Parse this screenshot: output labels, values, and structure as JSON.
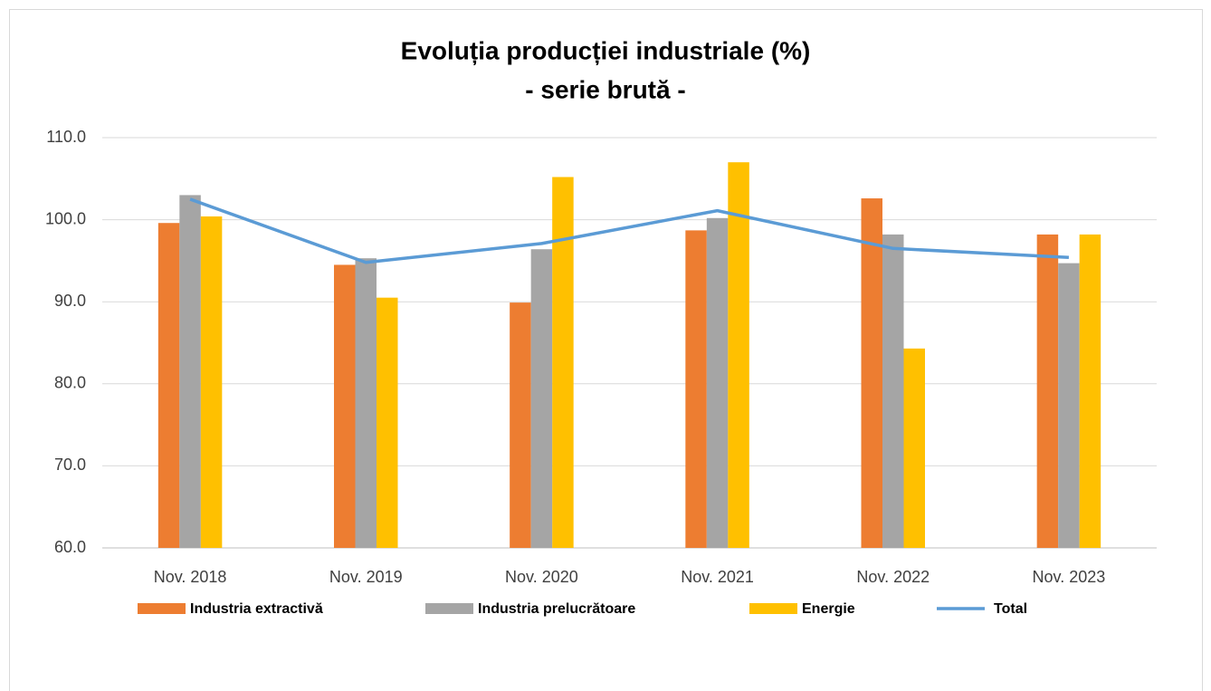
{
  "chart_data": {
    "type": "bar",
    "title": "Evoluția producției industriale (%)",
    "subtitle": "- serie brută -",
    "categories": [
      "Nov. 2018",
      "Nov. 2019",
      "Nov. 2020",
      "Nov. 2021",
      "Nov. 2022",
      "Nov. 2023"
    ],
    "series": [
      {
        "name": "Industria extractivă",
        "type": "bar",
        "color": "#ed7d31",
        "values": [
          99.6,
          94.5,
          89.9,
          98.7,
          102.6,
          98.2
        ]
      },
      {
        "name": "Industria prelucrătoare",
        "type": "bar",
        "color": "#a5a5a5",
        "values": [
          103.0,
          95.3,
          96.4,
          100.2,
          98.2,
          94.7
        ]
      },
      {
        "name": "Energie",
        "type": "bar",
        "color": "#ffc000",
        "values": [
          100.4,
          90.5,
          105.2,
          107.0,
          84.3,
          98.2
        ]
      },
      {
        "name": "Total",
        "type": "line",
        "color": "#5b9bd5",
        "values": [
          102.5,
          94.8,
          97.1,
          101.1,
          96.5,
          95.4
        ]
      }
    ],
    "ylim": [
      60,
      110
    ],
    "yticks": [
      {
        "value": 60,
        "label": "60.0"
      },
      {
        "value": 70,
        "label": "70.0"
      },
      {
        "value": 80,
        "label": "80.0"
      },
      {
        "value": 90,
        "label": "90.0"
      },
      {
        "value": 100,
        "label": "100.0"
      },
      {
        "value": 110,
        "label": "110.0"
      }
    ],
    "grid": true,
    "legend": "bottom"
  }
}
